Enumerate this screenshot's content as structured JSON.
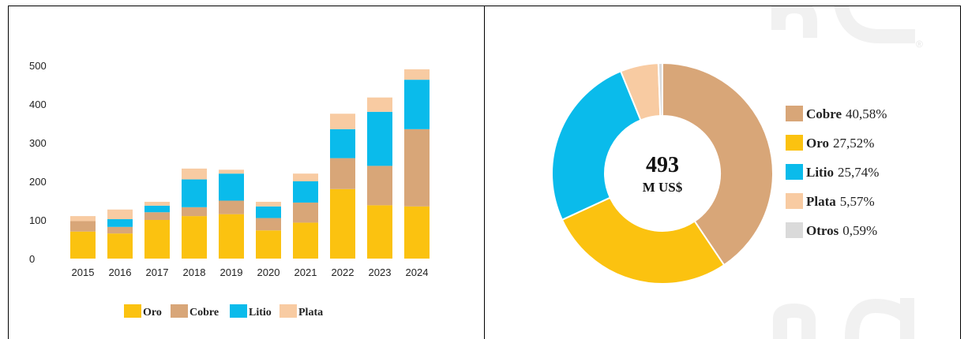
{
  "colors": {
    "Oro": "#FBC210",
    "Cobre": "#D8A678",
    "Litio": "#0ABBEB",
    "Plata": "#F8CBA2",
    "Otros": "#DADADA"
  },
  "chart_data": [
    {
      "type": "bar",
      "stacked": true,
      "categories": [
        "2015",
        "2016",
        "2017",
        "2018",
        "2019",
        "2020",
        "2021",
        "2022",
        "2023",
        "2024"
      ],
      "series": [
        {
          "name": "Oro",
          "values": [
            70,
            65,
            100,
            110,
            115,
            73,
            93,
            180,
            138,
            135
          ]
        },
        {
          "name": "Cobre",
          "values": [
            27,
            17,
            20,
            23,
            35,
            32,
            52,
            80,
            102,
            200
          ]
        },
        {
          "name": "Litio",
          "values": [
            0,
            20,
            17,
            72,
            70,
            30,
            55,
            75,
            140,
            128
          ]
        },
        {
          "name": "Plata",
          "values": [
            13,
            25,
            10,
            28,
            10,
            12,
            20,
            40,
            37,
            27
          ]
        }
      ],
      "yticks": [
        0,
        100,
        200,
        300,
        400,
        500
      ],
      "ylim": [
        0,
        500
      ],
      "grid": false,
      "legend": "bottom"
    },
    {
      "type": "pie",
      "donut": true,
      "center_total": "493",
      "center_unit": "M US$",
      "slices": [
        {
          "name": "Cobre",
          "value": 40.58,
          "label": "40,58%"
        },
        {
          "name": "Oro",
          "value": 27.52,
          "label": "27,52%"
        },
        {
          "name": "Litio",
          "value": 25.74,
          "label": "25,74%"
        },
        {
          "name": "Plata",
          "value": 5.57,
          "label": "5,57%"
        },
        {
          "name": "Otros",
          "value": 0.59,
          "label": "0,59%"
        }
      ],
      "legend": "right"
    }
  ]
}
